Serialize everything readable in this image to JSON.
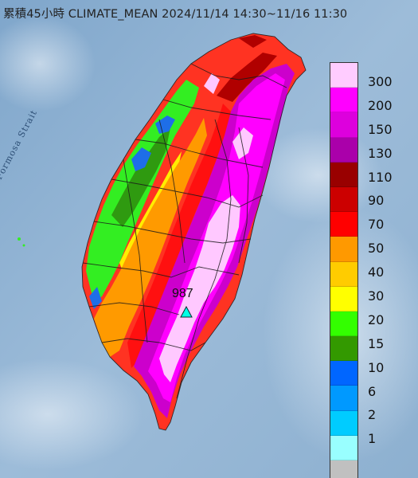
{
  "title": "累積45小時 CLIMATE_MEAN 2024/11/14 14:30~11/16 11:30",
  "map_labels": {
    "strait": "Formosa Strait",
    "max_value": "987"
  },
  "legend": {
    "items": [
      {
        "label": "300",
        "color": "#ffccff"
      },
      {
        "label": "200",
        "color": "#ff00ff"
      },
      {
        "label": "150",
        "color": "#dd00dd"
      },
      {
        "label": "130",
        "color": "#aa00aa"
      },
      {
        "label": "110",
        "color": "#990000"
      },
      {
        "label": "90",
        "color": "#cc0000"
      },
      {
        "label": "70",
        "color": "#ff0000"
      },
      {
        "label": "50",
        "color": "#ff9900"
      },
      {
        "label": "40",
        "color": "#ffcc00"
      },
      {
        "label": "30",
        "color": "#ffff00"
      },
      {
        "label": "20",
        "color": "#33ff00"
      },
      {
        "label": "15",
        "color": "#339900"
      },
      {
        "label": "10",
        "color": "#0066ff"
      },
      {
        "label": "6",
        "color": "#0099ff"
      },
      {
        "label": "2",
        "color": "#00ccff"
      },
      {
        "label": "1",
        "color": "#99ffff"
      },
      {
        "label": "",
        "color": "#c0c0c0"
      }
    ]
  },
  "colors": {
    "sea": "#8fb2d2",
    "marker_fill": "#00ffe6"
  }
}
